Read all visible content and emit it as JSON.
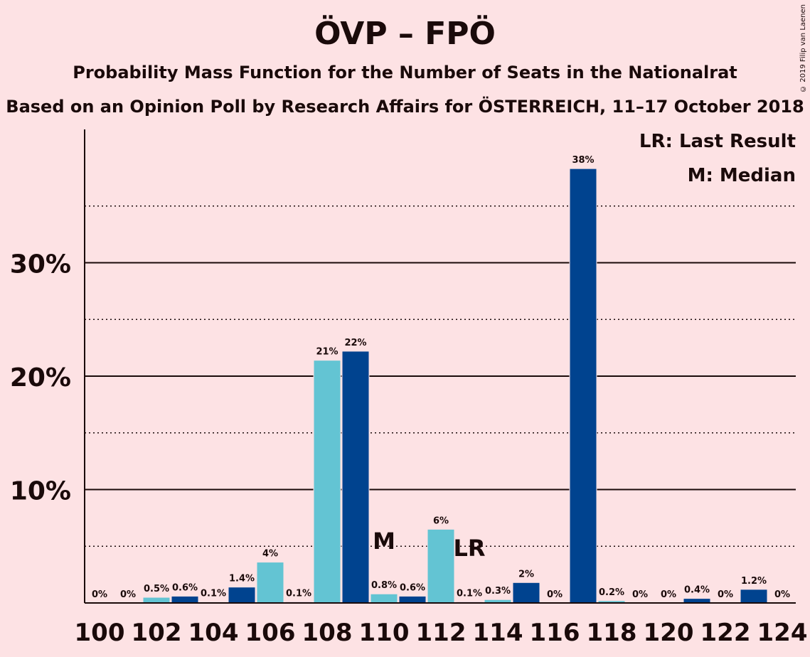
{
  "title": "ÖVP – FPÖ",
  "subtitle": "Probability Mass Function for the Number of Seats in the Nationalrat",
  "subtitle2": "Based on an Opinion Poll by Research Affairs for ÖSTERREICH, 11–17 October 2018",
  "copyright": "© 2019 Filip van Laenen",
  "legend": {
    "last_result": "LR: Last Result",
    "median": "M: Median"
  },
  "colors": {
    "background": "#fde2e4",
    "bar_dark": "#00438f",
    "bar_light": "#63c4d3",
    "text": "#1a0a0a"
  },
  "chart_data": {
    "type": "bar",
    "categories": [
      100,
      101,
      102,
      103,
      104,
      105,
      106,
      107,
      108,
      109,
      110,
      111,
      112,
      113,
      114,
      115,
      116,
      117,
      118,
      119,
      120,
      121,
      122,
      123,
      124
    ],
    "values": [
      0,
      0,
      0.5,
      0.6,
      0.1,
      1.4,
      3.6,
      0.1,
      21.4,
      22.2,
      0.8,
      0.6,
      6.5,
      0.1,
      0.3,
      1.8,
      0,
      38.3,
      0.2,
      0,
      0,
      0.4,
      0,
      1.2,
      0
    ],
    "value_labels": [
      "0%",
      "0%",
      "0.5%",
      "0.6%",
      "0.1%",
      "1.4%",
      "4%",
      "0.1%",
      "21%",
      "22%",
      "0.8%",
      "0.6%",
      "6%",
      "0.1%",
      "0.3%",
      "2%",
      "0%",
      "38%",
      "0.2%",
      "0%",
      "0%",
      "0.4%",
      "0%",
      "1.2%",
      "0%"
    ],
    "x_tick_labels": [
      "100",
      "102",
      "104",
      "106",
      "108",
      "110",
      "112",
      "114",
      "116",
      "118",
      "120",
      "122",
      "124"
    ],
    "y_tick_labels": [
      "10%",
      "20%",
      "30%"
    ],
    "y_ticks": [
      10,
      20,
      30
    ],
    "y_minor_ticks": [
      5,
      15,
      25,
      35
    ],
    "ylim": [
      0,
      41.7
    ],
    "median_seat": 110,
    "median_label": "M",
    "last_result_seat": 113,
    "last_result_label": "LR"
  }
}
